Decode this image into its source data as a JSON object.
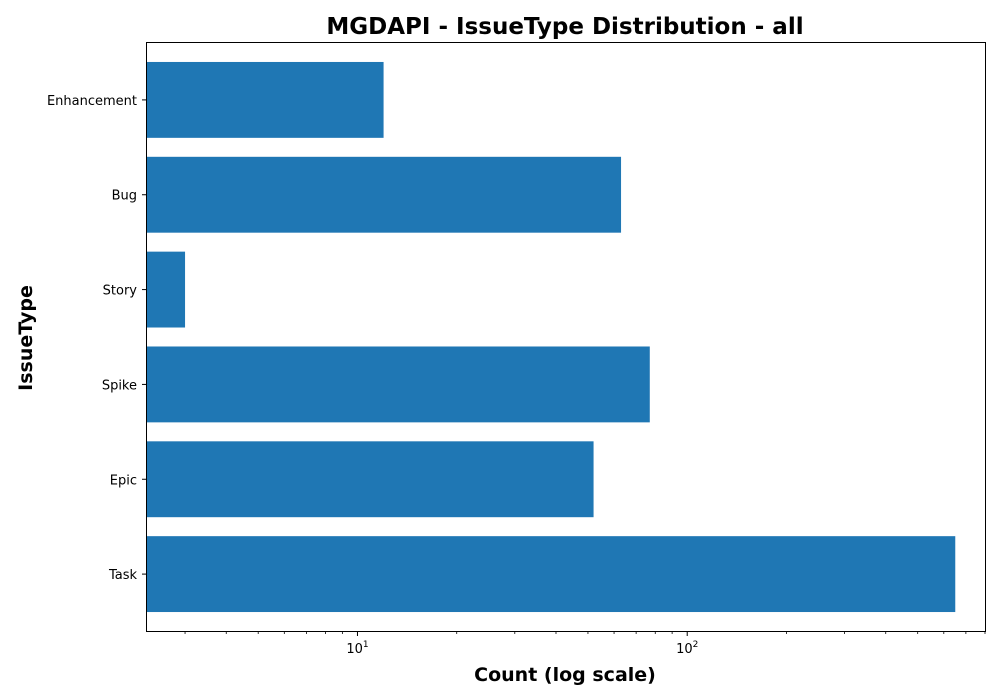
{
  "chart_data": {
    "type": "bar",
    "orientation": "horizontal",
    "title": "MGDAPI - IssueType Distribution - all",
    "xlabel": "Count (log scale)",
    "ylabel": "IssueType",
    "xscale": "log",
    "xlim": [
      2.3,
      800
    ],
    "grid": false,
    "categories": [
      "Enhancement",
      "Bug",
      "Story",
      "Spike",
      "Epic",
      "Task"
    ],
    "series": [
      {
        "values": [
          12,
          63,
          3,
          77,
          52,
          650
        ],
        "color": "#1f77b4"
      }
    ],
    "x_major_ticks": [
      {
        "value": 10,
        "base": "10",
        "exp": "1"
      },
      {
        "value": 100,
        "base": "10",
        "exp": "2"
      }
    ]
  }
}
